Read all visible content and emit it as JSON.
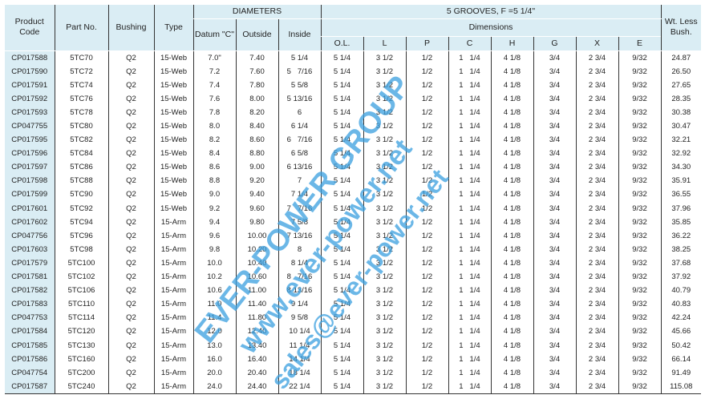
{
  "header": {
    "product_code": "Product Code",
    "part_no": "Part No.",
    "bushing": "Bushing",
    "type": "Type",
    "diameters": "DIAMETERS",
    "datum": "Datum \"C\"",
    "outside": "Outside",
    "inside": "Inside",
    "grooves": "5  GROOVES,   F =5 1/4\"",
    "dimensions": "Dimensions",
    "dims": [
      "O.L.",
      "L",
      "P",
      "C",
      "H",
      "G",
      "X",
      "E"
    ],
    "weight": "Wt. Less Bush."
  },
  "rows": [
    [
      "CP017588",
      "5TC70",
      "Q2",
      "15-Web",
      "7.0\"",
      "7.40",
      "5 1/4",
      "5 1/4",
      "3 1/2",
      "1/2",
      "1   1/4",
      "4 1/8",
      "3/4",
      "2 3/4",
      "9/32",
      "24.87"
    ],
    [
      "CP017590",
      "5TC72",
      "Q2",
      "15-Web",
      "7.2",
      "7.60",
      "5   7/16",
      "5 1/4",
      "3 1/2",
      "1/2",
      "1   1/4",
      "4 1/8",
      "3/4",
      "2 3/4",
      "9/32",
      "26.50"
    ],
    [
      "CP017591",
      "5TC74",
      "Q2",
      "15-Web",
      "7.4",
      "7.80",
      "5 5/8",
      "5 1/4",
      "3 1/2",
      "1/2",
      "1   1/4",
      "4 1/8",
      "3/4",
      "2 3/4",
      "9/32",
      "27.65"
    ],
    [
      "CP017592",
      "5TC76",
      "Q2",
      "15-Web",
      "7.6",
      "8.00",
      "5 13/16",
      "5 1/4",
      "3 1/2",
      "1/2",
      "1   1/4",
      "4 1/8",
      "3/4",
      "2 3/4",
      "9/32",
      "28.35"
    ],
    [
      "CP017593",
      "5TC78",
      "Q2",
      "15-Web",
      "7.8",
      "8.20",
      "6",
      "5 1/4",
      "3 1/2",
      "1/2",
      "1   1/4",
      "4 1/8",
      "3/4",
      "2 3/4",
      "9/32",
      "30.38"
    ],
    [
      "CP047755",
      "5TC80",
      "Q2",
      "15-Web",
      "8.0",
      "8.40",
      "6 1/4",
      "5 1/4",
      "3 1/2",
      "1/2",
      "1   1/4",
      "4 1/8",
      "3/4",
      "2 3/4",
      "9/32",
      "30.47"
    ],
    [
      "CP017595",
      "5TC82",
      "Q2",
      "15-Web",
      "8.2",
      "8.60",
      "6   7/16",
      "5 1/4",
      "3 1/2",
      "1/2",
      "1   1/4",
      "4 1/8",
      "3/4",
      "2 3/4",
      "9/32",
      "32.21"
    ],
    [
      "CP017596",
      "5TC84",
      "Q2",
      "15-Web",
      "8.4",
      "8.80",
      "6 5/8",
      "5 1/4",
      "3 1/2",
      "1/2",
      "1   1/4",
      "4 1/8",
      "3/4",
      "2 3/4",
      "9/32",
      "32.92"
    ],
    [
      "CP017597",
      "5TC86",
      "Q2",
      "15-Web",
      "8.6",
      "9.00",
      "6 13/16",
      "5 1/4",
      "3 1/2",
      "1/2",
      "1   1/4",
      "4 1/8",
      "3/4",
      "2 3/4",
      "9/32",
      "34.30"
    ],
    [
      "CP017598",
      "5TC88",
      "Q2",
      "15-Web",
      "8.8",
      "9.20",
      "7",
      "5 1/4",
      "3 1/2",
      "1/2",
      "1   1/4",
      "4 1/8",
      "3/4",
      "2 3/4",
      "9/32",
      "35.91"
    ],
    [
      "CP017599",
      "5TC90",
      "Q2",
      "15-Web",
      "9.0",
      "9.40",
      "7 1/4",
      "5 1/4",
      "3 1/2",
      "1/2",
      "1   1/4",
      "4 1/8",
      "3/4",
      "2 3/4",
      "9/32",
      "36.55"
    ],
    [
      "CP017601",
      "5TC92",
      "Q2",
      "15-Web",
      "9.2",
      "9.60",
      "7   7/16",
      "5 1/4",
      "3 1/2",
      "1/2",
      "1   1/4",
      "4 1/8",
      "3/4",
      "2 3/4",
      "9/32",
      "37.96"
    ],
    [
      "CP017602",
      "5TC94",
      "Q2",
      "15-Arm",
      "9.4",
      "9.80",
      "7 5/8",
      "5 1/4",
      "3 1/2",
      "1/2",
      "1   1/4",
      "4 1/8",
      "3/4",
      "2 3/4",
      "9/32",
      "35.85"
    ],
    [
      "CP047756",
      "5TC96",
      "Q2",
      "15-Arm",
      "9.6",
      "10.00",
      "7 13/16",
      "5 1/4",
      "3 1/2",
      "1/2",
      "1   1/4",
      "4 1/8",
      "3/4",
      "2 3/4",
      "9/32",
      "36.22"
    ],
    [
      "CP017603",
      "5TC98",
      "Q2",
      "15-Arm",
      "9.8",
      "10.20",
      "8",
      "5 1/4",
      "3 1/2",
      "1/2",
      "1   1/4",
      "4 1/8",
      "3/4",
      "2 3/4",
      "9/32",
      "38.25"
    ],
    [
      "CP017579",
      "5TC100",
      "Q2",
      "15-Arm",
      "10.0",
      "10.40",
      "8 1/4",
      "5 1/4",
      "3 1/2",
      "1/2",
      "1   1/4",
      "4 1/8",
      "3/4",
      "2 3/4",
      "9/32",
      "37.68"
    ],
    [
      "CP017581",
      "5TC102",
      "Q2",
      "15-Arm",
      "10.2",
      "10.60",
      "8   7/16",
      "5 1/4",
      "3 1/2",
      "1/2",
      "1   1/4",
      "4 1/8",
      "3/4",
      "2 3/4",
      "9/32",
      "37.92"
    ],
    [
      "CP017582",
      "5TC106",
      "Q2",
      "15-Arm",
      "10.6",
      "11.00",
      "8 13/16",
      "5 1/4",
      "3 1/2",
      "1/2",
      "1   1/4",
      "4 1/8",
      "3/4",
      "2 3/4",
      "9/32",
      "40.79"
    ],
    [
      "CP017583",
      "5TC110",
      "Q2",
      "15-Arm",
      "11.0",
      "11.40",
      "9 1/4",
      "5 1/4",
      "3 1/2",
      "1/2",
      "1   1/4",
      "4 1/8",
      "3/4",
      "2 3/4",
      "9/32",
      "40.83"
    ],
    [
      "CP047753",
      "5TC114",
      "Q2",
      "15-Arm",
      "11.4",
      "11.80",
      "9 5/8",
      "5 1/4",
      "3 1/2",
      "1/2",
      "1   1/4",
      "4 1/8",
      "3/4",
      "2 3/4",
      "9/32",
      "42.24"
    ],
    [
      "CP017584",
      "5TC120",
      "Q2",
      "15-Arm",
      "12.0",
      "12.40",
      "10 1/4",
      "5 1/4",
      "3 1/2",
      "1/2",
      "1   1/4",
      "4 1/8",
      "3/4",
      "2 3/4",
      "9/32",
      "45.66"
    ],
    [
      "CP017585",
      "5TC130",
      "Q2",
      "15-Arm",
      "13.0",
      "13.40",
      "11 1/4",
      "5 1/4",
      "3 1/2",
      "1/2",
      "1   1/4",
      "4 1/8",
      "3/4",
      "2 3/4",
      "9/32",
      "50.42"
    ],
    [
      "CP017586",
      "5TC160",
      "Q2",
      "15-Arm",
      "16.0",
      "16.40",
      "14 1/4",
      "5 1/4",
      "3 1/2",
      "1/2",
      "1   1/4",
      "4 1/8",
      "3/4",
      "2 3/4",
      "9/32",
      "66.14"
    ],
    [
      "CP047754",
      "5TC200",
      "Q2",
      "15-Arm",
      "20.0",
      "20.40",
      "18 1/4",
      "5 1/4",
      "3 1/2",
      "1/2",
      "1   1/4",
      "4 1/8",
      "3/4",
      "2 3/4",
      "9/32",
      "91.49"
    ],
    [
      "CP017587",
      "5TC240",
      "Q2",
      "15-Arm",
      "24.0",
      "24.40",
      "22 1/4",
      "5 1/4",
      "3 1/2",
      "1/2",
      "1   1/4",
      "4 1/8",
      "3/4",
      "2 3/4",
      "9/32",
      "115.08"
    ]
  ],
  "watermark": {
    "line1": "EVER-POWER GROUP",
    "line2": "www.ever-power.net",
    "line3": "sales@ever-power.net"
  },
  "colors": {
    "header_bg": "#daedf4",
    "watermark": "#3aa0e0"
  }
}
